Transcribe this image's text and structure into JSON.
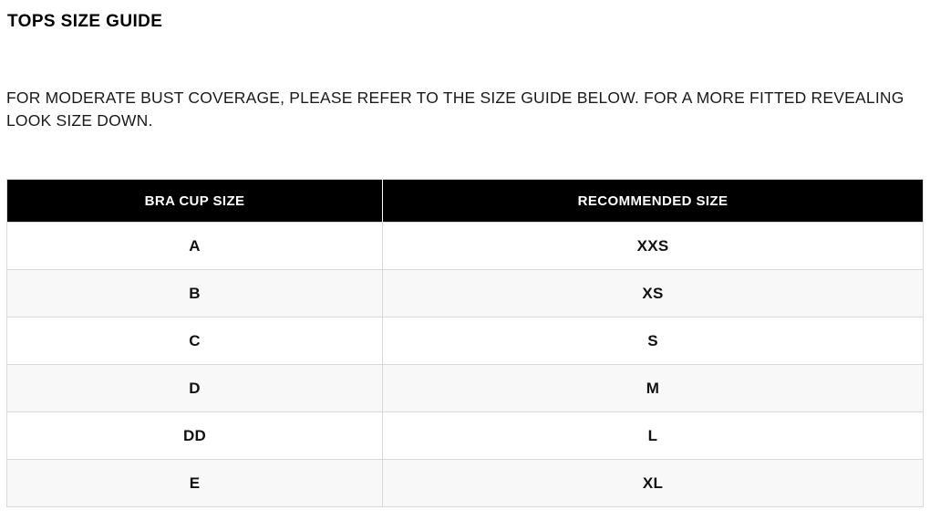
{
  "title": "TOPS SIZE GUIDE",
  "description": "FOR MODERATE BUST COVERAGE, PLEASE REFER TO THE SIZE GUIDE BELOW. FOR A MORE FITTED REVEALING LOOK SIZE DOWN.",
  "table": {
    "headers": [
      "BRA CUP SIZE",
      "RECOMMENDED SIZE"
    ],
    "rows": [
      {
        "cup": "A",
        "size": "XXS"
      },
      {
        "cup": "B",
        "size": "XS"
      },
      {
        "cup": "C",
        "size": "S"
      },
      {
        "cup": "D",
        "size": "M"
      },
      {
        "cup": "DD",
        "size": "L"
      },
      {
        "cup": "E",
        "size": "XL"
      }
    ]
  },
  "colors": {
    "header_bg": "#000000",
    "header_text": "#ffffff",
    "row_bg": "#ffffff",
    "row_alt_bg": "#f8f8f8",
    "border": "#d9d9d9",
    "text": "#111111"
  }
}
